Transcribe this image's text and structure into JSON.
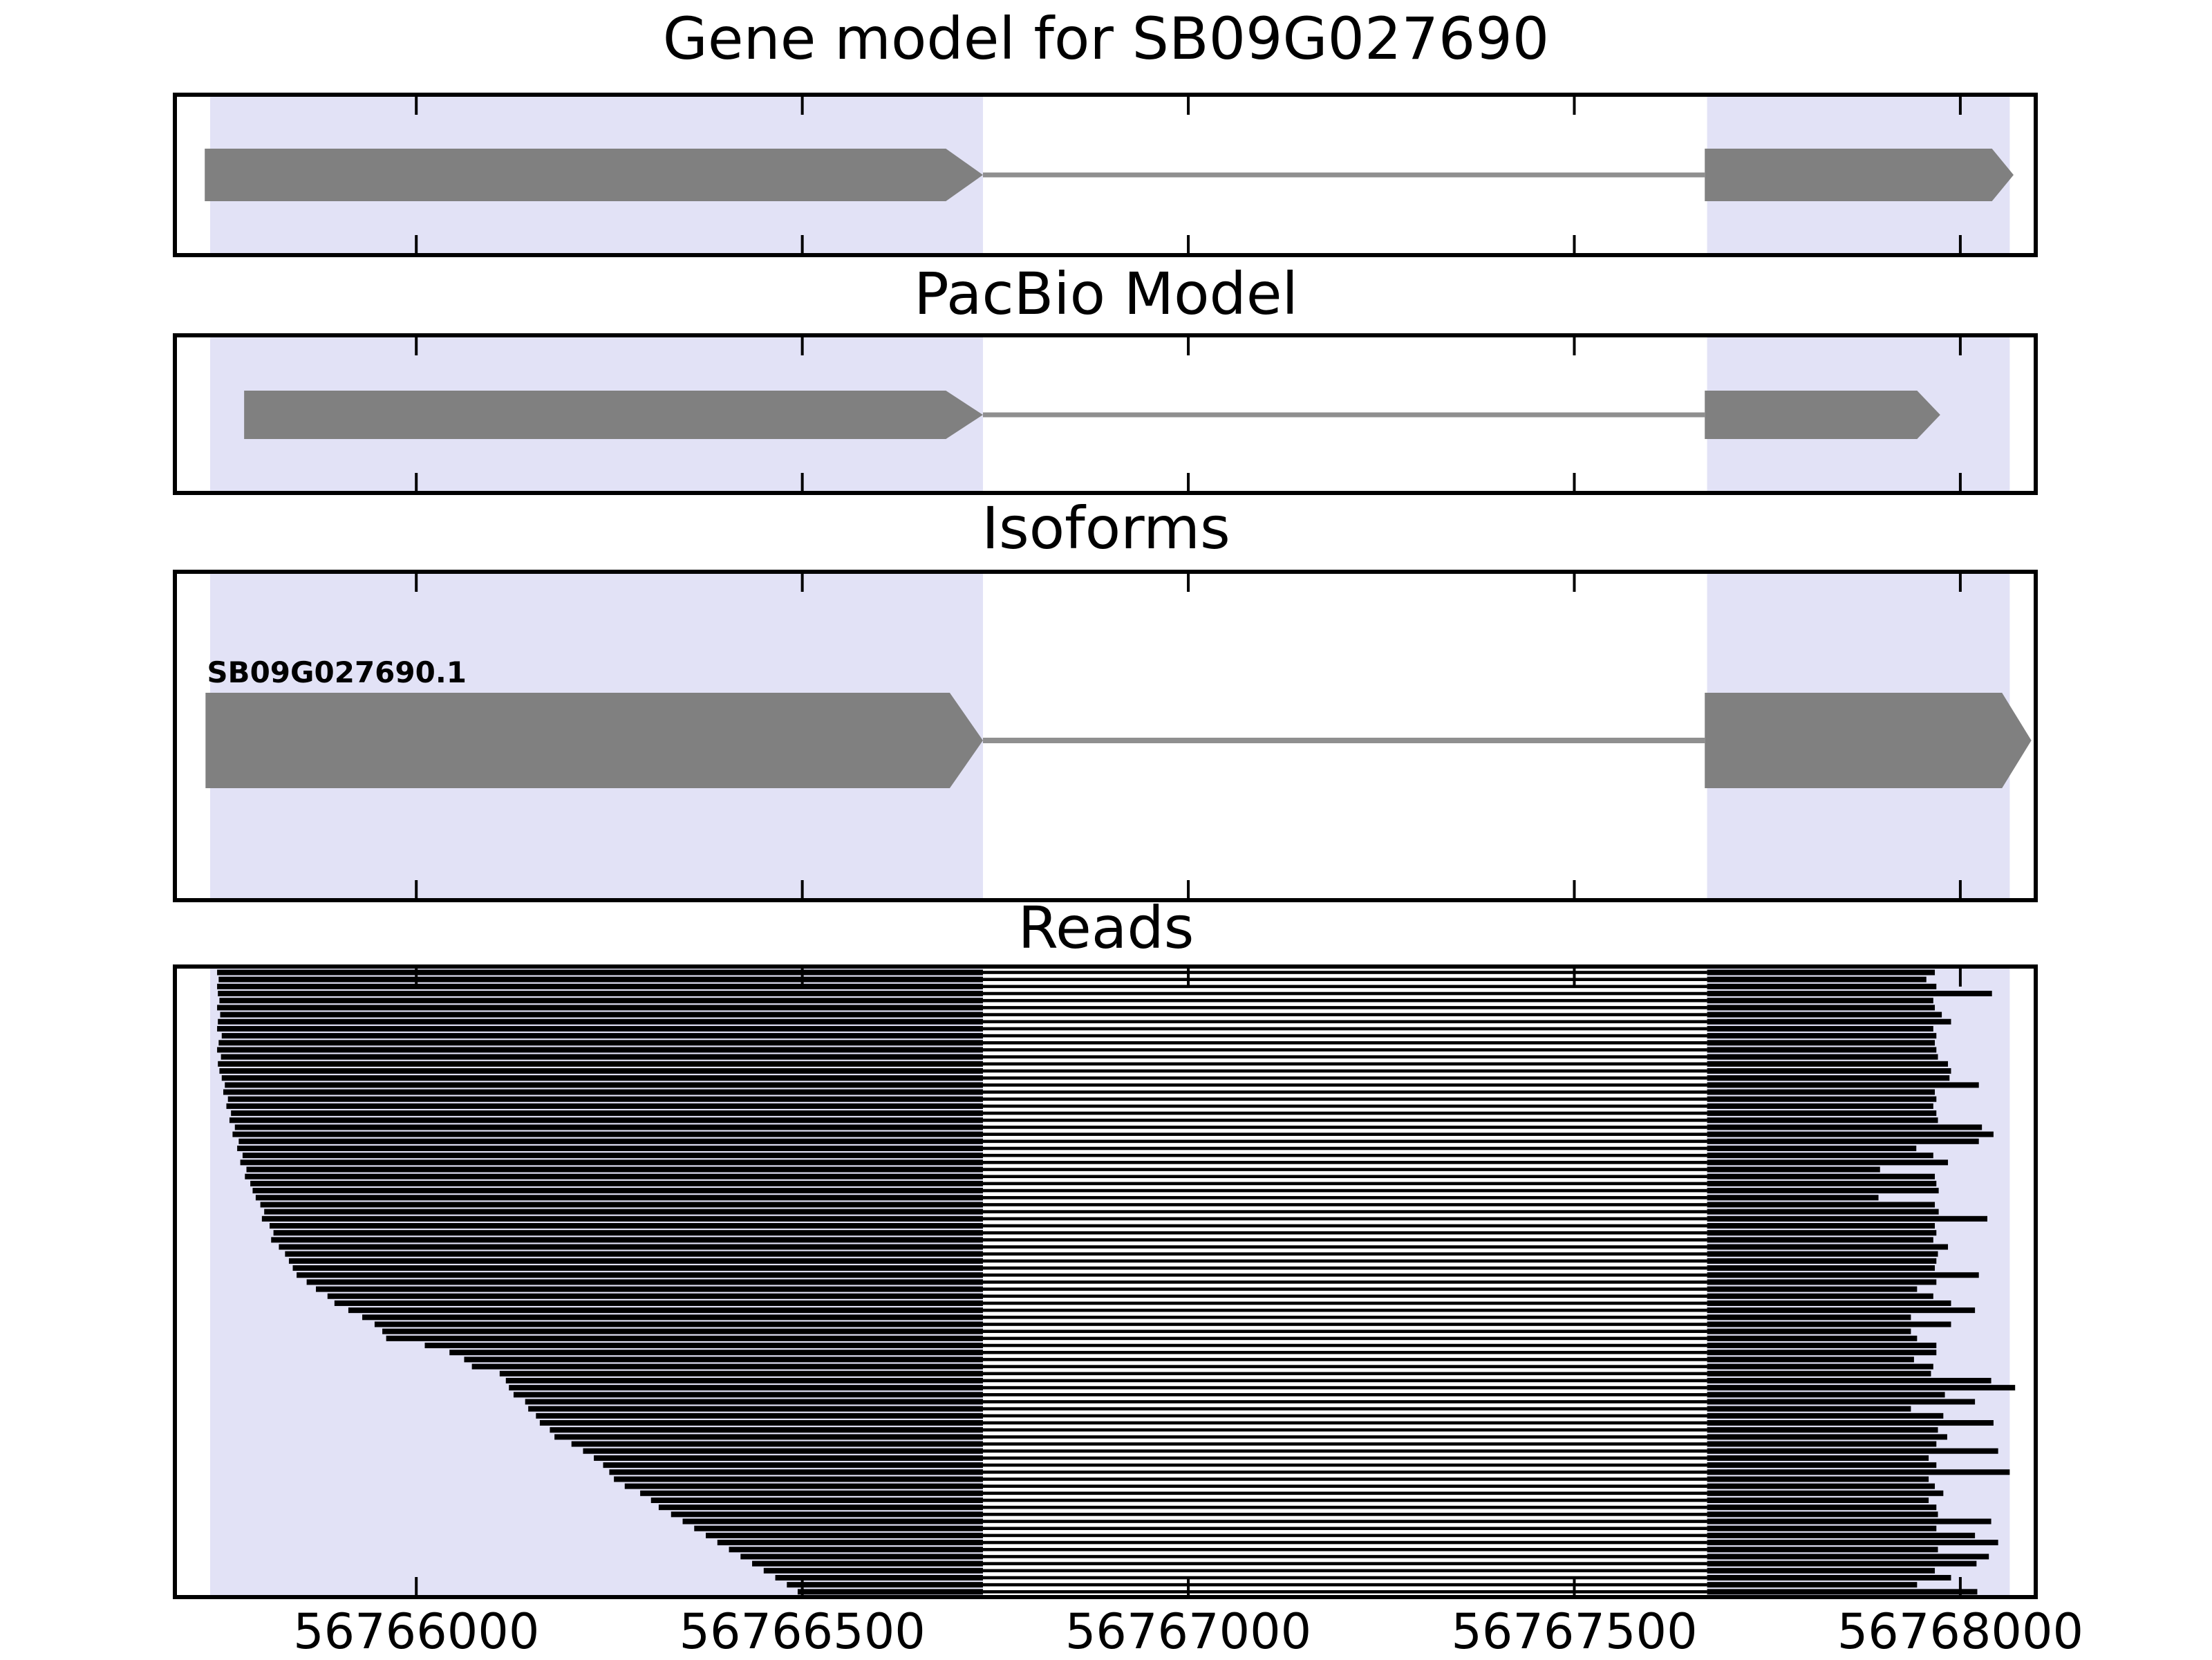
{
  "figure": {
    "background": "#ffffff",
    "titles": {
      "gene": "Gene model for SB09G027690",
      "pacbio": "PacBio Model",
      "isoforms": "Isoforms",
      "reads": "Reads"
    }
  },
  "chart_data": {
    "type": "gene-model-tracks",
    "title": "Gene model for SB09G027690",
    "x_axis": {
      "xlim": [
        56765690,
        56768095
      ],
      "ticks": [
        56766000,
        56766500,
        56767000,
        56767500,
        56768000
      ],
      "tick_labels": [
        "56766000",
        "56766500",
        "56767000",
        "56767500",
        "56768000"
      ]
    },
    "highlight_regions": [
      {
        "start": 56765733,
        "end": 56766734,
        "color": "#e2e2f6"
      },
      {
        "start": 56767672,
        "end": 56768064,
        "color": "#e2e2f6"
      }
    ],
    "tracks": [
      {
        "name": "gene-model",
        "title": "Gene model for SB09G027690",
        "glyph_color": "#808080",
        "intron_color": "#8f8f8f",
        "exons": [
          {
            "start": 56765726,
            "body_end": 56766686,
            "tip": 56766734
          },
          {
            "start": 56767669,
            "body_end": 56768041,
            "tip": 56768069
          }
        ]
      },
      {
        "name": "pacbio-model",
        "title": "PacBio Model",
        "glyph_color": "#808080",
        "intron_color": "#8f8f8f",
        "exons": [
          {
            "start": 56765777,
            "body_end": 56766686,
            "tip": 56766734
          },
          {
            "start": 56767669,
            "body_end": 56767944,
            "tip": 56767974
          }
        ]
      },
      {
        "name": "isoform",
        "title": "Isoforms",
        "label": "SB09G027690.1",
        "glyph_color": "#808080",
        "intron_color": "#8f8f8f",
        "exons": [
          {
            "start": 56765727,
            "body_end": 56766691,
            "tip": 56766734
          },
          {
            "start": 56767669,
            "body_end": 56768054,
            "tip": 56768092
          }
        ]
      }
    ],
    "reads": {
      "title": "Reads",
      "color": "#000000",
      "exon1_end": 56766734,
      "exon2_start": 56767672,
      "spans": [
        [
          56765742,
          56767967
        ],
        [
          56765744,
          56767956
        ],
        [
          56765742,
          56767969
        ],
        [
          56765743,
          56768041
        ],
        [
          56765745,
          56767965
        ],
        [
          56765742,
          56767967
        ],
        [
          56765746,
          56767976
        ],
        [
          56765743,
          56767988
        ],
        [
          56765742,
          56767965
        ],
        [
          56765748,
          56767969
        ],
        [
          56765744,
          56767967
        ],
        [
          56765742,
          56767969
        ],
        [
          56765747,
          56767971
        ],
        [
          56765743,
          56767984
        ],
        [
          56765745,
          56767988
        ],
        [
          56765748,
          56767986
        ],
        [
          56765752,
          56768024
        ],
        [
          56765750,
          56767967
        ],
        [
          56765756,
          56767969
        ],
        [
          56765754,
          56767965
        ],
        [
          56765760,
          56767969
        ],
        [
          56765758,
          56767971
        ],
        [
          56765765,
          56768028
        ],
        [
          56765762,
          56768043
        ],
        [
          56765770,
          56768024
        ],
        [
          56765768,
          56767943
        ],
        [
          56765775,
          56767965
        ],
        [
          56765772,
          56767984
        ],
        [
          56765780,
          56767896
        ],
        [
          56765778,
          56767967
        ],
        [
          56765785,
          56767969
        ],
        [
          56765788,
          56767972
        ],
        [
          56765792,
          56767894
        ],
        [
          56765798,
          56767967
        ],
        [
          56765803,
          56767972
        ],
        [
          56765800,
          56768035
        ],
        [
          56765810,
          56767967
        ],
        [
          56765815,
          56767969
        ],
        [
          56765812,
          56767965
        ],
        [
          56765822,
          56767984
        ],
        [
          56765830,
          56767971
        ],
        [
          56765835,
          56767969
        ],
        [
          56765840,
          56767967
        ],
        [
          56765845,
          56768024
        ],
        [
          56765858,
          56767969
        ],
        [
          56765870,
          56767944
        ],
        [
          56765885,
          56767965
        ],
        [
          56765894,
          56767988
        ],
        [
          56765912,
          56768019
        ],
        [
          56765930,
          56767936
        ],
        [
          56765946,
          56767988
        ],
        [
          56765956,
          56767936
        ],
        [
          56765961,
          56767944
        ],
        [
          56766011,
          56767969
        ],
        [
          56766043,
          56767969
        ],
        [
          56766062,
          56767940
        ],
        [
          56766072,
          56767965
        ],
        [
          56766108,
          56767962
        ],
        [
          56766116,
          56768040
        ],
        [
          56766120,
          56768071
        ],
        [
          56766126,
          56767980
        ],
        [
          56766141,
          56768019
        ],
        [
          56766145,
          56767936
        ],
        [
          56766155,
          56767978
        ],
        [
          56766160,
          56768043
        ],
        [
          56766173,
          56767971
        ],
        [
          56766179,
          56767983
        ],
        [
          56766201,
          56767969
        ],
        [
          56766216,
          56768049
        ],
        [
          56766230,
          56767959
        ],
        [
          56766242,
          56767969
        ],
        [
          56766250,
          56768064
        ],
        [
          56766256,
          56767959
        ],
        [
          56766270,
          56767967
        ],
        [
          56766290,
          56767978
        ],
        [
          56766304,
          56767959
        ],
        [
          56766314,
          56767969
        ],
        [
          56766330,
          56767971
        ],
        [
          56766345,
          56768040
        ],
        [
          56766360,
          56767969
        ],
        [
          56766375,
          56768019
        ],
        [
          56766390,
          56768049
        ],
        [
          56766405,
          56767971
        ],
        [
          56766420,
          56768037
        ],
        [
          56766435,
          56768021
        ],
        [
          56766450,
          56767967
        ],
        [
          56766465,
          56767988
        ],
        [
          56766480,
          56767944
        ],
        [
          56766494,
          56768022
        ]
      ]
    }
  }
}
